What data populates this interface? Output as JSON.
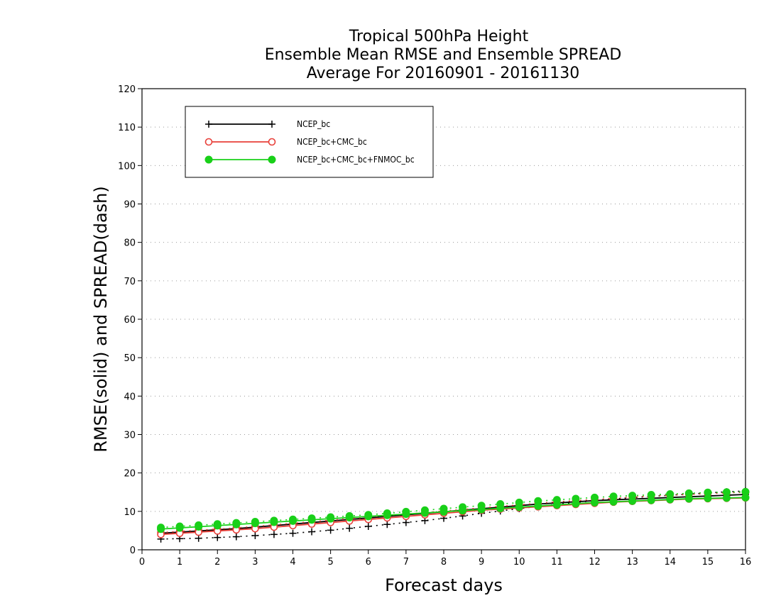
{
  "chart_data": {
    "type": "line",
    "title": [
      "Tropical 500hPa Height",
      "Ensemble Mean RMSE and Ensemble SPREAD",
      "Average For 20160901 - 20161130"
    ],
    "xlabel": "Forecast days",
    "ylabel": "RMSE(solid) and SPREAD(dash)",
    "xlim": [
      0,
      16
    ],
    "ylim": [
      0,
      120
    ],
    "xticks": [
      "0",
      "1",
      "2",
      "3",
      "4",
      "5",
      "6",
      "7",
      "8",
      "9",
      "10",
      "11",
      "12",
      "13",
      "14",
      "15",
      "16"
    ],
    "yticks": [
      "0",
      "10",
      "20",
      "30",
      "40",
      "50",
      "60",
      "70",
      "80",
      "90",
      "100",
      "110",
      "120"
    ],
    "grid": "horizontal dotted",
    "legend_position": "top-left",
    "x": [
      0.5,
      1,
      1.5,
      2,
      2.5,
      3,
      3.5,
      4,
      4.5,
      5,
      5.5,
      6,
      6.5,
      7,
      7.5,
      8,
      8.5,
      9,
      9.5,
      10,
      10.5,
      11,
      11.5,
      12,
      12.5,
      13,
      13.5,
      14,
      14.5,
      15,
      15.5,
      16
    ],
    "series": [
      {
        "name": "NCEP_bc",
        "color": "#000000",
        "marker": "plus",
        "rmse": [
          4.3,
          4.6,
          4.9,
          5.2,
          5.5,
          5.9,
          6.3,
          6.7,
          7.1,
          7.5,
          7.9,
          8.3,
          8.7,
          9.1,
          9.5,
          9.9,
          10.3,
          10.7,
          11.1,
          11.5,
          11.9,
          12.2,
          12.5,
          12.8,
          13.0,
          13.2,
          13.4,
          13.6,
          13.8,
          14.0,
          14.2,
          14.4
        ],
        "spread": [
          2.8,
          2.9,
          3.0,
          3.2,
          3.4,
          3.7,
          4.0,
          4.3,
          4.7,
          5.1,
          5.6,
          6.1,
          6.6,
          7.1,
          7.6,
          8.2,
          8.8,
          9.5,
          10.1,
          10.7,
          11.3,
          11.8,
          12.3,
          12.8,
          13.2,
          13.6,
          13.9,
          14.2,
          14.5,
          14.8,
          15.1,
          15.3
        ]
      },
      {
        "name": "NCEP_bc+CMC_bc",
        "color": "#e8403a",
        "marker": "open-circle",
        "rmse": [
          4.0,
          4.3,
          4.6,
          4.9,
          5.2,
          5.5,
          5.9,
          6.3,
          6.7,
          7.1,
          7.5,
          7.9,
          8.3,
          8.7,
          9.1,
          9.5,
          9.9,
          10.3,
          10.6,
          10.9,
          11.2,
          11.5,
          11.8,
          12.1,
          12.4,
          12.6,
          12.8,
          13.0,
          13.2,
          13.3,
          13.4,
          13.5
        ],
        "spread": [
          4.5,
          4.8,
          5.1,
          5.4,
          5.7,
          6.1,
          6.5,
          6.9,
          7.3,
          7.7,
          8.1,
          8.5,
          8.9,
          9.3,
          9.7,
          10.1,
          10.5,
          10.9,
          11.3,
          11.7,
          12.1,
          12.5,
          12.8,
          13.1,
          13.4,
          13.7,
          14.0,
          14.2,
          14.4,
          14.6,
          14.8,
          15.0
        ]
      },
      {
        "name": "NCEP_bc+CMC_bc+FNMOC_bc",
        "color": "#19d019",
        "marker": "filled-circle",
        "rmse": [
          5.4,
          5.7,
          6.0,
          6.3,
          6.6,
          6.9,
          7.2,
          7.5,
          7.8,
          8.1,
          8.4,
          8.7,
          9.0,
          9.3,
          9.6,
          9.9,
          10.2,
          10.5,
          10.8,
          11.1,
          11.4,
          11.7,
          12.0,
          12.3,
          12.5,
          12.7,
          12.9,
          13.1,
          13.3,
          13.4,
          13.5,
          13.6
        ],
        "spread": [
          5.8,
          6.1,
          6.4,
          6.7,
          7.0,
          7.3,
          7.6,
          7.9,
          8.2,
          8.5,
          8.8,
          9.1,
          9.5,
          9.9,
          10.3,
          10.7,
          11.1,
          11.5,
          11.9,
          12.3,
          12.7,
          13.0,
          13.3,
          13.6,
          13.9,
          14.1,
          14.3,
          14.5,
          14.7,
          14.9,
          15.0,
          15.1
        ]
      }
    ]
  }
}
